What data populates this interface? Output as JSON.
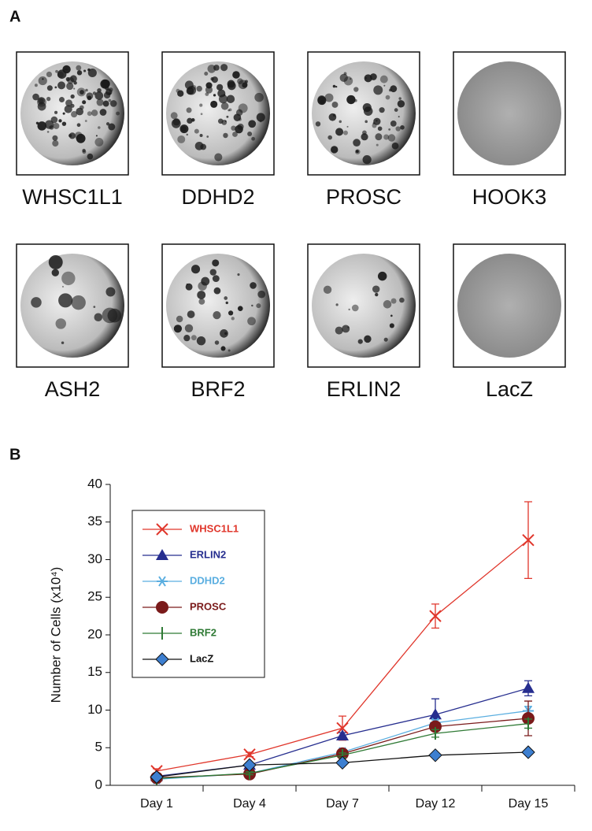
{
  "panels": {
    "a": "A",
    "b": "B"
  },
  "plates": [
    "WHSC1L1",
    "DDHD2",
    "PROSC",
    "HOOK3",
    "ASH2",
    "BRF2",
    "ERLIN2",
    "LacZ"
  ],
  "chart_data": {
    "type": "line",
    "y_label": "Number of Cells (x10⁴)",
    "categories": [
      "Day 1",
      "Day 4",
      "Day 7",
      "Day 12",
      "Day 15"
    ],
    "ylim": [
      0,
      40
    ],
    "yticks": [
      0,
      5,
      10,
      15,
      20,
      25,
      30,
      35,
      40
    ],
    "legend": "upper left",
    "series": [
      {
        "name": "WHSC1L1",
        "color": "#e0362b",
        "marker": "x",
        "values": [
          1.9,
          4.1,
          7.6,
          22.5,
          32.6
        ],
        "errors": [
          0.3,
          0.3,
          1.6,
          1.6,
          5.1
        ]
      },
      {
        "name": "ERLIN2",
        "color": "#262e8f",
        "marker": "triangle",
        "values": [
          1.2,
          2.7,
          6.6,
          9.4,
          12.9
        ],
        "errors": [
          0.2,
          0.3,
          0.4,
          2.1,
          1.0
        ]
      },
      {
        "name": "DDHD2",
        "color": "#5aaee0",
        "marker": "asterisk",
        "values": [
          0.8,
          1.6,
          4.4,
          8.3,
          9.9
        ],
        "errors": [
          0.2,
          0.2,
          0.3,
          0.4,
          0.6
        ]
      },
      {
        "name": "PROSC",
        "color": "#7a1a1a",
        "marker": "circle",
        "values": [
          1.0,
          1.5,
          4.2,
          7.8,
          8.9
        ],
        "errors": [
          0.2,
          0.2,
          0.3,
          0.5,
          2.3
        ]
      },
      {
        "name": "BRF2",
        "color": "#2f7a35",
        "marker": "bar",
        "values": [
          0.9,
          1.6,
          4.0,
          6.9,
          8.2
        ],
        "errors": [
          0.2,
          0.2,
          0.3,
          0.5,
          0.6
        ]
      },
      {
        "name": "LacZ",
        "color": "#111111",
        "marker": "diamond",
        "markerFill": "#3d7fd0",
        "values": [
          1.1,
          2.7,
          3.0,
          4.0,
          4.4
        ],
        "errors": [
          0.1,
          0.2,
          0.2,
          0.2,
          0.3
        ]
      }
    ]
  }
}
